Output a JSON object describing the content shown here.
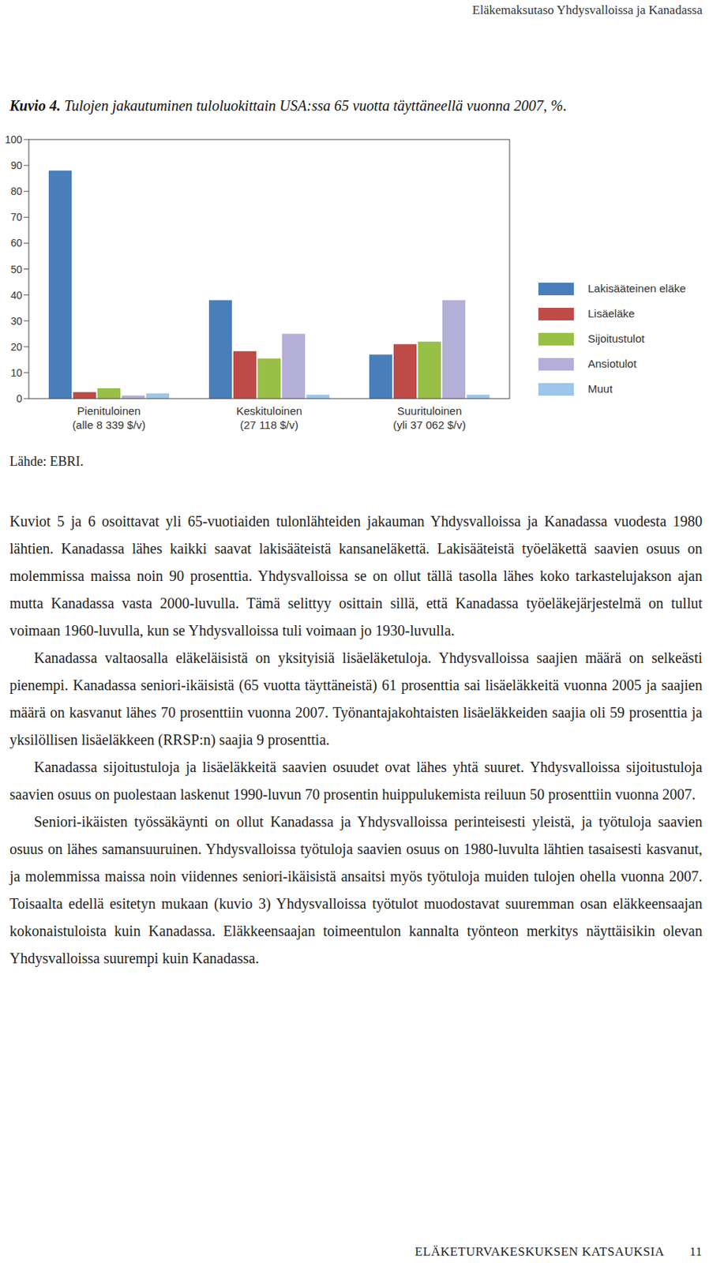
{
  "header": {
    "title": "Eläkemaksutaso Yhdysvalloissa ja Kanadassa"
  },
  "figure": {
    "label": "Kuvio 4.",
    "caption": "Tulojen jakautuminen tuloluokittain USA:ssa 65 vuotta täyttäneellä vuonna 2007, %.",
    "source": "Lähde: EBRI."
  },
  "chart_data": {
    "type": "bar",
    "categories": [
      "Pienituloinen\n(alle 8 339 $/v)",
      "Keskituloinen\n(27 118 $/v)",
      "Suurituloinen\n(yli 37 062 $/v)"
    ],
    "series": [
      {
        "name": "Lakisääteinen eläke",
        "color": "#4a7ebb",
        "values": [
          88,
          38,
          17
        ]
      },
      {
        "name": "Lisäeläke",
        "color": "#be4b48",
        "values": [
          2.5,
          18.3,
          21
        ]
      },
      {
        "name": "Sijoitustulot",
        "color": "#98c046",
        "values": [
          4,
          15.5,
          22
        ]
      },
      {
        "name": "Ansiotulot",
        "color": "#b4afd6",
        "values": [
          1.2,
          25,
          38
        ]
      },
      {
        "name": "Muut",
        "color": "#9ec6e8",
        "values": [
          2,
          1.5,
          1.5
        ]
      }
    ],
    "ylim": [
      0,
      100
    ],
    "yticks": [
      0,
      10,
      20,
      30,
      40,
      50,
      60,
      70,
      80,
      90,
      100
    ],
    "grid": false,
    "legend": "right"
  },
  "paragraphs": [
    "Kuviot 5 ja 6 osoittavat yli 65-vuotiaiden tulonlähteiden jakauman Yhdysvalloissa ja Kanadassa vuodesta 1980 lähtien. Kanadassa lähes kaikki saavat lakisääteistä kansaneläkettä. Lakisääteistä työeläkettä saavien osuus on molemmissa maissa noin 90 prosenttia. Yhdysvalloissa se on ollut tällä tasolla lähes koko tarkastelujakson ajan mutta Kanadassa vasta 2000-luvulla. Tämä selittyy osittain sillä, että Kanadassa työeläkejärjestelmä on tullut voimaan 1960-luvulla, kun se Yhdysvalloissa tuli voimaan jo 1930-luvulla.",
    "Kanadassa valtaosalla eläkeläisistä on yksityisiä lisäeläketuloja. Yhdysvalloissa saajien määrä on selkeästi pienempi. Kanadassa seniori-ikäisistä (65 vuotta täyttäneistä) 61 prosenttia sai lisäeläkkeitä vuonna 2005 ja saajien määrä on kasvanut lähes 70 prosenttiin vuonna 2007. Työnantajakohtaisten lisäeläkkeiden saajia oli 59 prosenttia ja yksilöllisen lisäeläkkeen (RRSP:n) saajia 9 prosenttia.",
    "Kanadassa sijoitustuloja ja lisäeläkkeitä saavien osuudet ovat lähes yhtä suuret. Yhdysvalloissa sijoitustuloja saavien osuus on puolestaan laskenut 1990-luvun 70 prosentin huippulukemista reiluun 50 prosenttiin vuonna 2007.",
    "Seniori-ikäisten työssäkäynti on ollut Kanadassa ja Yhdysvalloissa perinteisesti yleistä, ja työtuloja saavien osuus on lähes samansuuruinen. Yhdysvalloissa työtuloja saavien osuus on 1980-luvulta lähtien tasaisesti kasvanut, ja molemmissa maissa noin viidennes seniori-ikäisistä ansaitsi myös työtuloja muiden tulojen ohella vuonna 2007. Toisaalta edellä esitetyn mukaan (kuvio 3) Yhdysvalloissa työtulot muodostavat suuremman osan eläkkeensaajan kokonaistuloista kuin Kanadassa. Eläkkeensaajan toimeentulon kannalta työnteon merkitys näyttäisikin olevan Yhdysvalloissa suurempi kuin Kanadassa."
  ],
  "footer": {
    "title": "ELÄKETURVAKESKUKSEN KATSAUKSIA",
    "page": "11"
  }
}
